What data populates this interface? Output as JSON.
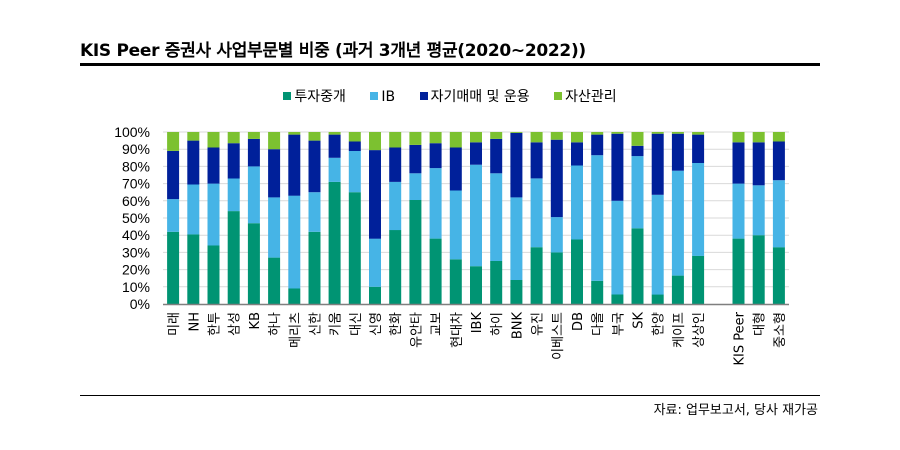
{
  "header": {
    "title": "KIS Peer 증권사 사업부문별 비중 (과거 3개년 평균(2020~2022))"
  },
  "footer": {
    "source": "자료: 업무보고서, 당사 재가공"
  },
  "colors": {
    "brokerage": "#009473",
    "ib": "#46b4e6",
    "trading": "#00209a",
    "asset_mgmt": "#7cc130"
  },
  "chart_data": {
    "type": "bar",
    "stacked": true,
    "percent_stacked": true,
    "title": "KIS Peer 증권사 사업부문별 비중 (과거 3개년 평균(2020~2022))",
    "xlabel": "",
    "ylabel": "",
    "ylim": [
      0,
      100
    ],
    "yticks": [
      "0%",
      "10%",
      "20%",
      "30%",
      "40%",
      "50%",
      "60%",
      "70%",
      "80%",
      "90%",
      "100%"
    ],
    "grid": true,
    "legend_position": "top-center",
    "categories": [
      "미래",
      "NH",
      "한투",
      "삼성",
      "KB",
      "하나",
      "메리츠",
      "신한",
      "키움",
      "대신",
      "신영",
      "한화",
      "유안타",
      "교보",
      "현대차",
      "IBK",
      "하이",
      "BNK",
      "유진",
      "이베스트",
      "DB",
      "다올",
      "부국",
      "SK",
      "한양",
      "케이프",
      "상상인",
      "",
      "KIS Peer",
      "대형",
      "중소형"
    ],
    "category_labels": [
      [
        "미래"
      ],
      [
        "NH"
      ],
      [
        "한투"
      ],
      [
        "삼성"
      ],
      [
        "KB"
      ],
      [
        "하나"
      ],
      [
        "메리츠"
      ],
      [
        "신한"
      ],
      [
        "키움"
      ],
      [
        "대신"
      ],
      [
        "신영"
      ],
      [
        "한화"
      ],
      [
        "유안타"
      ],
      [
        "교보"
      ],
      [
        "현대차"
      ],
      [
        "IBK"
      ],
      [
        "하이"
      ],
      [
        "BNK"
      ],
      [
        "유진"
      ],
      [
        "이베스트"
      ],
      [
        "DB"
      ],
      [
        "다올"
      ],
      [
        "부국"
      ],
      [
        "SK"
      ],
      [
        "한양"
      ],
      [
        "케이프"
      ],
      [
        "상상인"
      ],
      [],
      [
        "KIS Peer"
      ],
      [
        "대형"
      ],
      [
        "중소형"
      ]
    ],
    "series": [
      {
        "name": "투자중개",
        "key": "brokerage",
        "values": [
          42,
          40.5,
          34,
          54,
          47,
          27,
          9,
          42,
          71,
          65,
          10,
          43,
          60.5,
          38,
          26,
          22,
          25,
          14,
          33,
          30,
          37.5,
          13.5,
          5.5,
          44,
          5.5,
          16.5,
          28,
          null,
          38,
          40,
          33
        ]
      },
      {
        "name": "IB",
        "key": "ib",
        "values": [
          19,
          29,
          36,
          19,
          33,
          35,
          54,
          23,
          14,
          24,
          28,
          28,
          15.5,
          41,
          40,
          59,
          51,
          48,
          40,
          20.5,
          43,
          73,
          54.5,
          42,
          58,
          61,
          54,
          null,
          32,
          29,
          39
        ]
      },
      {
        "name": "자기매매 및 운용",
        "key": "trading",
        "values": [
          28,
          25.5,
          21,
          20.5,
          16,
          28,
          35.5,
          30,
          13.5,
          5.5,
          51.5,
          20,
          16.5,
          14.5,
          25,
          13,
          20,
          37.5,
          21,
          45,
          13.5,
          12,
          39,
          6,
          35.5,
          21.5,
          16.5,
          null,
          24,
          25,
          22.5
        ]
      },
      {
        "name": "자산관리",
        "key": "asset_mgmt",
        "values": [
          11,
          5,
          9,
          6.5,
          4,
          10,
          1.5,
          5,
          1.5,
          5.5,
          10.5,
          9,
          7.5,
          6.5,
          9,
          6,
          4,
          0.5,
          6,
          4.5,
          6,
          1.5,
          1,
          8,
          1,
          1,
          1.5,
          null,
          6,
          6,
          5.5
        ]
      }
    ]
  }
}
